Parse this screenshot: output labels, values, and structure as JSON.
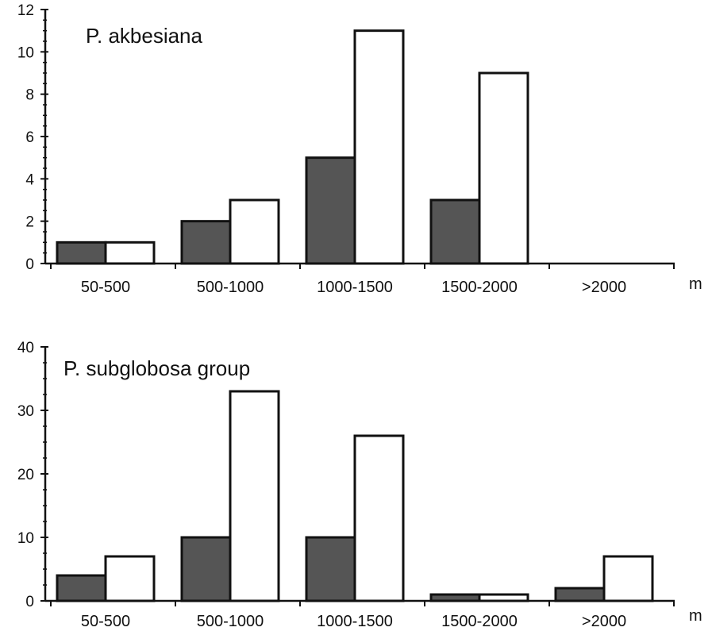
{
  "chart_data": [
    {
      "type": "bar",
      "title": "P. akbesiana",
      "xunit": "m",
      "categories": [
        "50-500",
        "500-1000",
        "1000-1500",
        "1500-2000",
        ">2000"
      ],
      "series": [
        {
          "color": "#555555",
          "values": [
            1,
            2,
            5,
            3,
            0
          ]
        },
        {
          "color": "#ffffff",
          "values": [
            1,
            3,
            11,
            9,
            0
          ]
        }
      ],
      "ylim": [
        0,
        12
      ],
      "yticks": [
        0,
        2,
        4,
        6,
        8,
        10,
        12
      ],
      "grid": false
    },
    {
      "type": "bar",
      "title": "P. subglobosa group",
      "xunit": "m",
      "categories": [
        "50-500",
        "500-1000",
        "1000-1500",
        "1500-2000",
        ">2000"
      ],
      "series": [
        {
          "color": "#555555",
          "values": [
            4,
            10,
            10,
            1,
            2
          ]
        },
        {
          "color": "#ffffff",
          "values": [
            7,
            33,
            26,
            1,
            7
          ]
        }
      ],
      "ylim": [
        0,
        40
      ],
      "yticks": [
        0,
        10,
        20,
        30,
        40
      ],
      "grid": false
    }
  ]
}
